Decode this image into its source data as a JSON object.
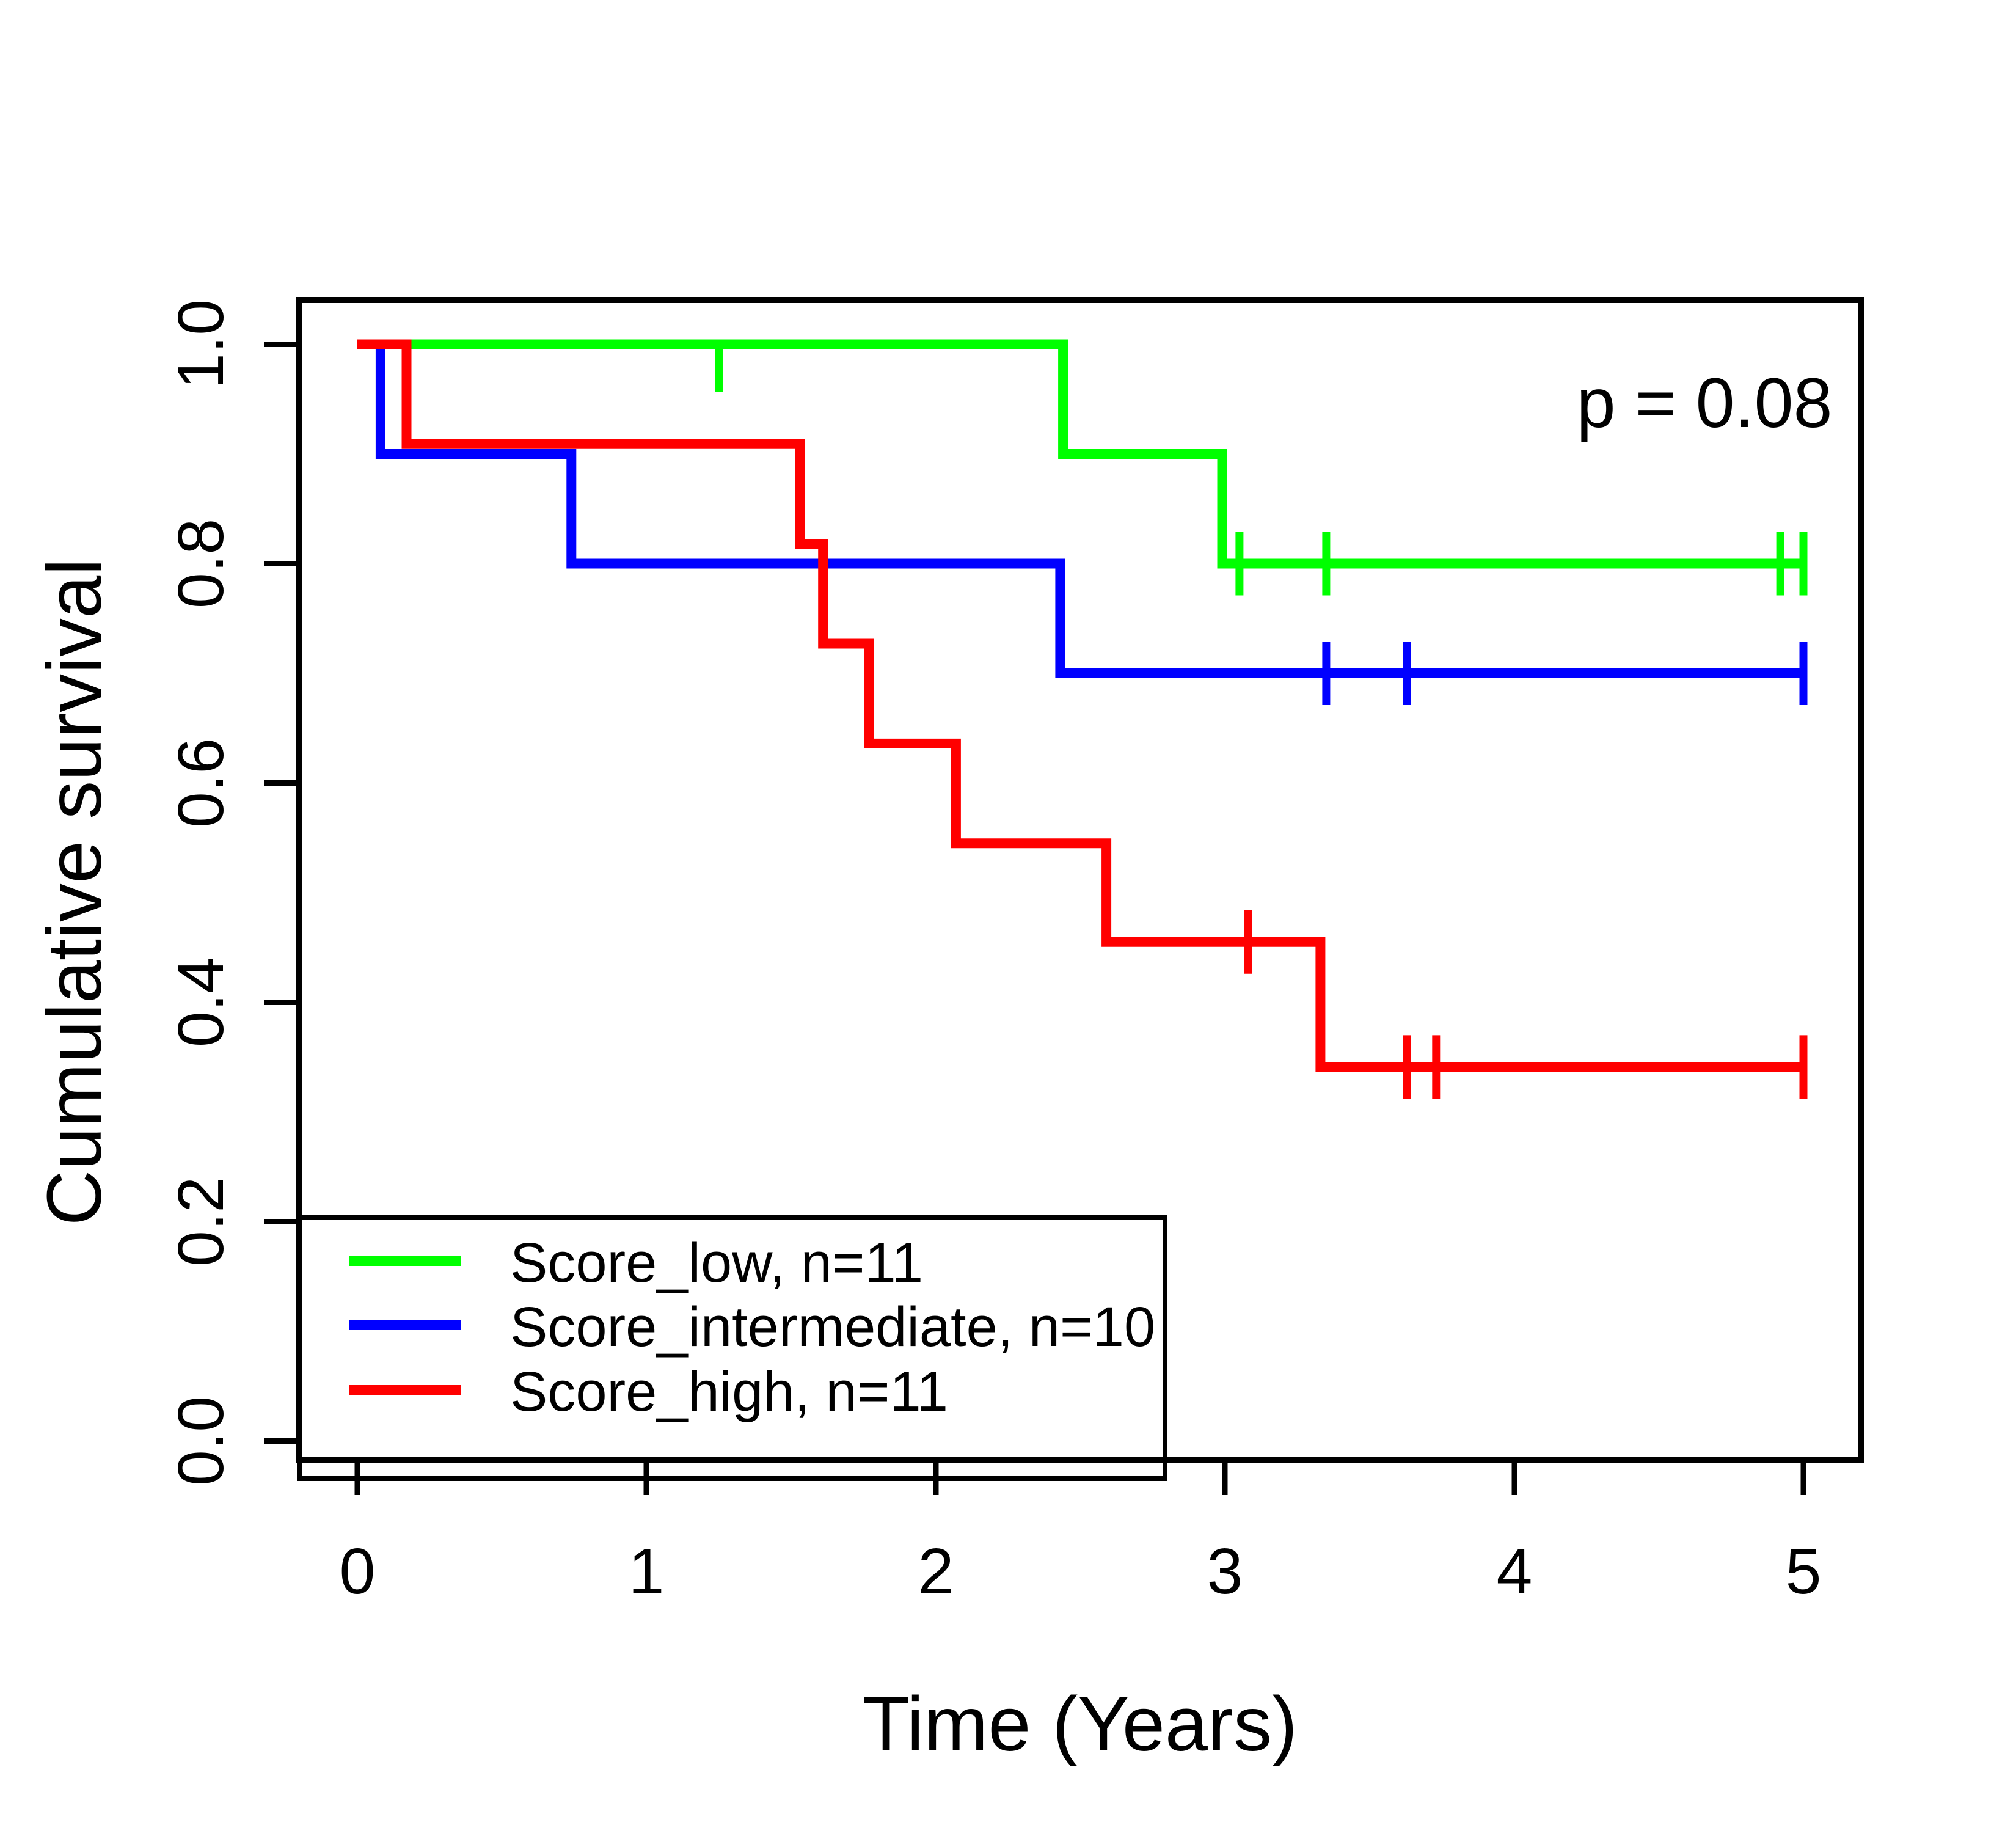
{
  "chart_data": {
    "type": "line",
    "subtype": "kaplan-meier-step",
    "title": "",
    "xlabel": "Time (Years)",
    "ylabel": "Cumulative survival",
    "annotation": "p = 0.08",
    "xlim": [
      0,
      5
    ],
    "ylim": [
      0.0,
      1.0
    ],
    "x_ticks": [
      "0",
      "1",
      "2",
      "3",
      "4",
      "5"
    ],
    "y_ticks": [
      "1.0",
      "0.8",
      "0.6",
      "0.4",
      "0.2",
      "0.0"
    ],
    "grid": false,
    "legend_position": "bottom-left",
    "series": [
      {
        "name": "Score_low, n=11",
        "n": 11,
        "color": "#00FF00",
        "steps": [
          [
            0,
            1.0
          ],
          [
            2.44,
            1.0
          ],
          [
            2.44,
            0.9
          ],
          [
            2.99,
            0.9
          ],
          [
            2.99,
            0.8
          ],
          [
            5.0,
            0.8
          ]
        ],
        "censors": [
          {
            "t": 1.25,
            "v": 1.0,
            "style": "below"
          },
          {
            "t": 3.05,
            "v": 0.8
          },
          {
            "t": 3.35,
            "v": 0.8
          },
          {
            "t": 4.92,
            "v": 0.8
          },
          {
            "t": 5.0,
            "v": 0.8
          }
        ]
      },
      {
        "name": "Score_intermediate, n=10",
        "n": 10,
        "color": "#0000FF",
        "steps": [
          [
            0,
            1.0
          ],
          [
            0.08,
            1.0
          ],
          [
            0.08,
            0.9
          ],
          [
            0.74,
            0.9
          ],
          [
            0.74,
            0.8
          ],
          [
            2.43,
            0.8
          ],
          [
            2.43,
            0.7
          ],
          [
            5.0,
            0.7
          ]
        ],
        "censors": [
          {
            "t": 3.35,
            "v": 0.7
          },
          {
            "t": 3.63,
            "v": 0.7
          },
          {
            "t": 5.0,
            "v": 0.7
          }
        ]
      },
      {
        "name": "Score_high, n=11",
        "n": 11,
        "color": "#FF0000",
        "steps": [
          [
            0,
            1.0
          ],
          [
            0.17,
            1.0
          ],
          [
            0.17,
            0.909
          ],
          [
            1.53,
            0.909
          ],
          [
            1.53,
            0.818
          ],
          [
            1.61,
            0.818
          ],
          [
            1.61,
            0.727
          ],
          [
            1.77,
            0.727
          ],
          [
            1.77,
            0.636
          ],
          [
            2.07,
            0.636
          ],
          [
            2.07,
            0.545
          ],
          [
            2.59,
            0.545
          ],
          [
            2.59,
            0.455
          ],
          [
            3.33,
            0.455
          ],
          [
            3.33,
            0.341
          ],
          [
            5.0,
            0.341
          ]
        ],
        "censors": [
          {
            "t": 3.08,
            "v": 0.455
          },
          {
            "t": 3.63,
            "v": 0.341
          },
          {
            "t": 3.73,
            "v": 0.341
          },
          {
            "t": 5.0,
            "v": 0.341
          }
        ]
      }
    ]
  }
}
